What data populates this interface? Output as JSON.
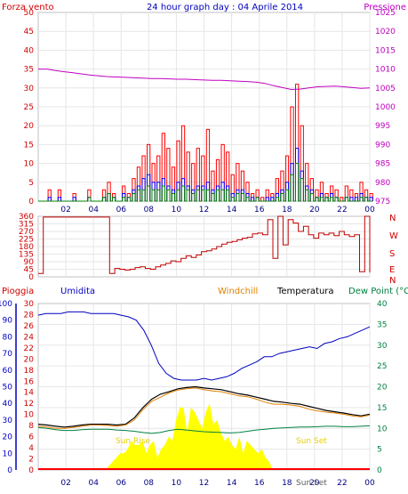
{
  "chart_data": [
    {
      "type": "line",
      "title": "24 hour graph day : 04 Aprile 2014",
      "left_label": "Forza vento",
      "right_label": "Pressione",
      "x_ticks": [
        "02",
        "04",
        "06",
        "08",
        "10",
        "12",
        "14",
        "16",
        "18",
        "20",
        "22",
        "00"
      ],
      "left_ticks": [
        "0",
        "5",
        "10",
        "15",
        "20",
        "25",
        "30",
        "35",
        "40",
        "45",
        "50"
      ],
      "right_ticks": [
        "975",
        "980",
        "985",
        "990",
        "995",
        "1000",
        "1005",
        "1010",
        "1015",
        "1020",
        "1025"
      ],
      "ylim_left": [
        0,
        50
      ],
      "ylim_right": [
        975,
        1025
      ],
      "series": [
        {
          "key": "gust",
          "color": "#ff0000",
          "values": [
            0,
            0,
            3,
            0,
            3,
            0,
            0,
            2,
            0,
            0,
            3,
            0,
            0,
            3,
            5,
            2,
            0,
            4,
            2,
            6,
            9,
            12,
            15,
            10,
            12,
            18,
            14,
            9,
            16,
            20,
            13,
            10,
            14,
            12,
            19,
            8,
            11,
            15,
            13,
            7,
            10,
            8,
            5,
            2,
            3,
            1,
            3,
            2,
            6,
            8,
            12,
            25,
            31,
            20,
            10,
            6,
            3,
            5,
            2,
            4,
            3,
            1,
            4,
            3,
            2,
            5,
            3,
            2
          ]
        },
        {
          "key": "wind",
          "color": "#0000ff",
          "values": [
            0,
            0,
            1,
            0,
            1,
            0,
            0,
            1,
            0,
            0,
            1,
            0,
            0,
            1,
            2,
            1,
            0,
            2,
            1,
            3,
            4,
            6,
            7,
            5,
            5,
            6,
            4,
            3,
            5,
            6,
            4,
            3,
            4,
            4,
            5,
            3,
            4,
            5,
            4,
            2,
            3,
            3,
            2,
            1,
            1,
            0,
            1,
            1,
            2,
            3,
            5,
            10,
            14,
            8,
            4,
            3,
            1,
            2,
            1,
            2,
            1,
            0,
            1,
            1,
            1,
            2,
            1,
            1
          ]
        },
        {
          "key": "wind2",
          "color": "#008000",
          "values": [
            0,
            0,
            0,
            0,
            0,
            0,
            0,
            0,
            0,
            0,
            1,
            0,
            0,
            1,
            2,
            1,
            0,
            1,
            1,
            2,
            3,
            3,
            4,
            3,
            3,
            4,
            3,
            2,
            3,
            4,
            3,
            2,
            3,
            3,
            3,
            2,
            3,
            3,
            3,
            1,
            2,
            2,
            1,
            0,
            1,
            0,
            0,
            0,
            1,
            2,
            3,
            7,
            10,
            6,
            3,
            2,
            1,
            1,
            1,
            1,
            1,
            0,
            1,
            0,
            0,
            1,
            1,
            0
          ]
        },
        {
          "key": "pressure",
          "color": "#c000c0",
          "axis": "right",
          "values": [
            1010,
            1010,
            1009.6,
            1009.3,
            1009,
            1008.7,
            1008.4,
            1008.2,
            1008,
            1007.9,
            1007.8,
            1007.7,
            1007.6,
            1007.5,
            1007.5,
            1007.4,
            1007.3,
            1007.3,
            1007.2,
            1007.1,
            1007,
            1007,
            1006.9,
            1006.8,
            1006.7,
            1006.5,
            1006.2,
            1005.6,
            1005.1,
            1004.6,
            1004.7,
            1005,
            1005.3,
            1005.4,
            1005.5,
            1005.3,
            1005.1,
            1004.9,
            1005
          ]
        }
      ]
    },
    {
      "type": "line",
      "title": "",
      "left_ticks": [
        "0",
        "45",
        "90",
        "135",
        "180",
        "225",
        "270",
        "315",
        "360"
      ],
      "right_labels": [
        "N",
        "W",
        "S",
        "E",
        "N"
      ],
      "ylim": [
        0,
        360
      ],
      "series": [
        {
          "key": "direction",
          "color": "#c00000",
          "values": [
            20,
            355,
            355,
            355,
            355,
            355,
            355,
            355,
            355,
            355,
            355,
            355,
            355,
            355,
            20,
            50,
            45,
            40,
            45,
            55,
            60,
            50,
            45,
            60,
            70,
            80,
            95,
            90,
            110,
            125,
            115,
            130,
            150,
            155,
            165,
            180,
            195,
            205,
            210,
            220,
            230,
            235,
            255,
            260,
            250,
            340,
            110,
            360,
            190,
            340,
            320,
            270,
            300,
            250,
            230,
            260,
            250,
            260,
            245,
            270,
            250,
            240,
            250,
            30,
            360,
            25
          ]
        }
      ]
    },
    {
      "type": "line",
      "title": "",
      "left1_label": "Pioggia",
      "left2_label": "Umidita",
      "center_labels": [
        "Windchill",
        "Temperatura"
      ],
      "right_label": "Dew Point (°C",
      "rain_ticks": [
        "0",
        "2",
        "4",
        "6",
        "8",
        "10",
        "12",
        "14",
        "16",
        "18",
        "20",
        "22",
        "24",
        "26",
        "28",
        "30"
      ],
      "hum_ticks": [
        "0",
        "10",
        "20",
        "30",
        "40",
        "50",
        "60",
        "70",
        "80",
        "90",
        "100"
      ],
      "temp_ticks": [
        "0",
        "5",
        "10",
        "15",
        "20",
        "25",
        "30",
        "35",
        "40"
      ],
      "x_ticks": [
        "02",
        "04",
        "06",
        "08",
        "10",
        "12",
        "14",
        "16",
        "18",
        "20",
        "22",
        "00"
      ],
      "annotations": [
        "Sun Rise",
        "Sun Set",
        "Sun Set"
      ],
      "ylim_humidity": [
        0,
        100
      ],
      "ylim_temp": [
        0,
        40
      ],
      "series": [
        {
          "key": "humidity",
          "color": "#0000c0",
          "values": [
            93,
            94,
            94,
            94,
            95,
            95,
            95,
            94,
            94,
            94,
            94,
            93,
            92,
            90,
            84,
            75,
            64,
            58,
            55,
            54,
            54,
            54,
            55,
            54,
            55,
            56,
            58,
            61,
            63,
            65,
            68,
            68,
            70,
            71,
            72,
            73,
            74,
            73,
            76,
            77,
            79,
            80,
            82,
            84,
            86
          ]
        },
        {
          "key": "temperature",
          "color": "#000000",
          "values": [
            11,
            10.8,
            10.5,
            10.3,
            10.5,
            10.8,
            11,
            11,
            11,
            10.8,
            11,
            12.5,
            15,
            17,
            18.2,
            18.8,
            19.5,
            19.8,
            20,
            19.7,
            19.5,
            19.3,
            18.8,
            18.3,
            18,
            17.5,
            17,
            16.5,
            16.3,
            16,
            15.8,
            15.3,
            14.8,
            14.3,
            14,
            13.7,
            13.3,
            13,
            13.4
          ]
        },
        {
          "key": "windchill",
          "color": "#e08000",
          "values": [
            10.5,
            10.3,
            10,
            10,
            10.2,
            10.5,
            10.8,
            10.8,
            10.7,
            10.5,
            10.8,
            12,
            14.5,
            16.5,
            17.5,
            18.5,
            19.2,
            19.5,
            19.7,
            19.3,
            19,
            18.8,
            18.3,
            17.8,
            17.6,
            17,
            16.3,
            15.8,
            15.8,
            15.6,
            15.3,
            14.6,
            14.2,
            13.9,
            13.7,
            13.4,
            13,
            12.8,
            13.2
          ]
        },
        {
          "key": "dewpoint",
          "color": "#008040",
          "values": [
            10.2,
            10,
            9.7,
            9.5,
            9.5,
            9.7,
            9.8,
            9.8,
            9.8,
            9.6,
            9.5,
            9.3,
            9,
            8.8,
            9,
            9.5,
            9.8,
            9.6,
            9.4,
            9.2,
            9.1,
            9,
            8.9,
            9,
            9.3,
            9.6,
            9.8,
            10,
            10.1,
            10.2,
            10.3,
            10.3,
            10.4,
            10.5,
            10.5,
            10.4,
            10.4,
            10.5,
            10.6
          ]
        },
        {
          "key": "solar",
          "color": "#ffff00",
          "values": [
            0,
            0,
            0,
            0,
            0,
            0,
            0,
            0,
            0,
            0,
            0,
            0,
            0,
            0,
            0,
            0,
            0,
            0,
            0,
            1,
            2,
            3,
            4,
            4,
            5,
            7,
            6,
            6,
            7,
            4,
            6,
            7,
            3,
            5,
            6,
            8,
            7,
            12,
            15,
            15,
            9,
            15,
            14,
            12,
            10,
            14,
            16,
            11,
            12,
            9,
            7,
            8,
            6,
            5,
            8,
            4,
            7,
            6,
            5,
            4,
            5,
            3,
            2,
            0,
            0,
            0,
            0,
            0,
            0,
            0,
            0,
            0,
            0,
            0,
            0,
            0,
            0,
            0,
            0,
            0,
            0,
            0,
            0,
            0,
            0,
            0,
            0,
            0,
            0,
            0
          ]
        },
        {
          "key": "rain",
          "color": "#ff0000",
          "values": [
            0,
            0,
            0,
            0,
            0,
            0,
            0,
            0,
            0,
            0,
            0,
            0,
            0,
            0,
            0,
            0,
            0,
            0,
            0,
            0,
            0,
            0,
            0,
            0,
            0,
            0,
            0,
            0,
            0,
            0,
            0,
            0,
            0,
            0,
            0,
            0,
            0,
            0,
            0,
            0,
            0,
            0,
            0,
            0
          ]
        }
      ]
    }
  ]
}
